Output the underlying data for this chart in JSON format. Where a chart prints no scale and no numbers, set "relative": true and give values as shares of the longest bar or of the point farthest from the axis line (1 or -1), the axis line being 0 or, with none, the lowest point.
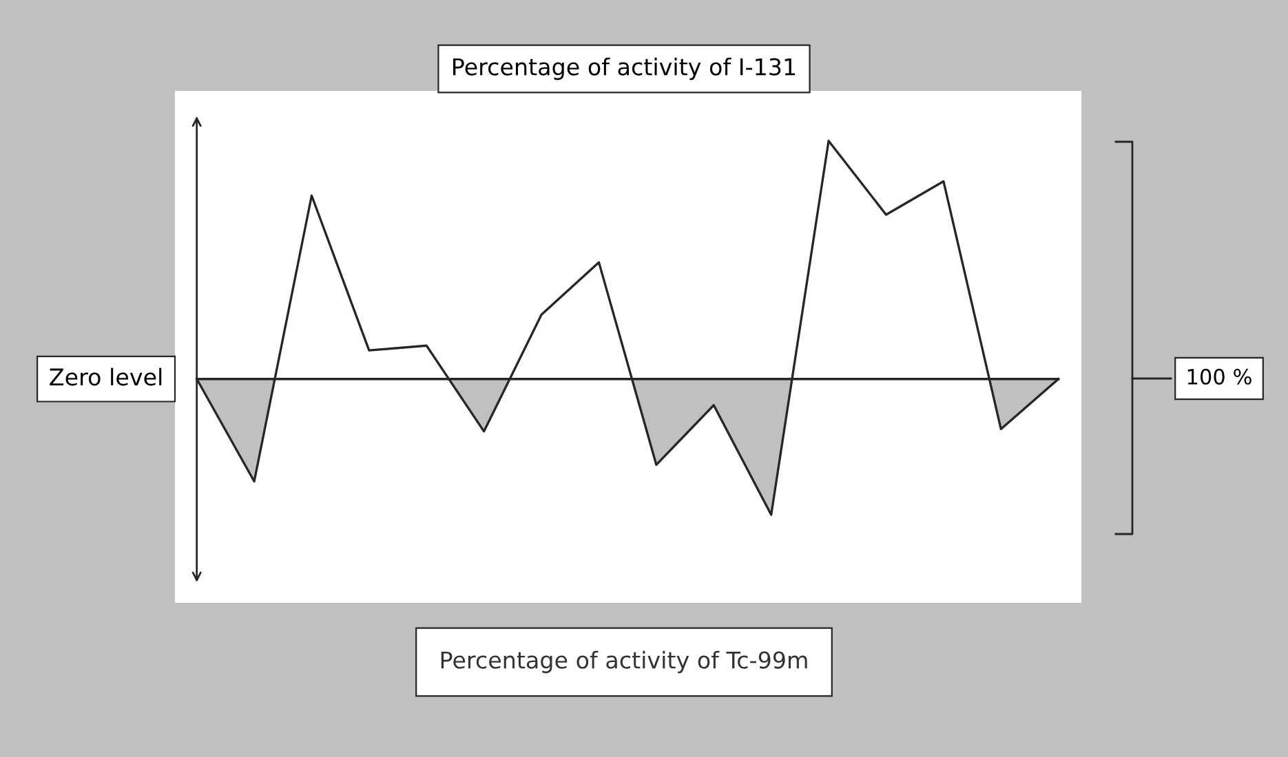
{
  "chart_data": {
    "type": "line",
    "title": "Percentage of activity of I-131",
    "categories": [
      null,
      null,
      null,
      null,
      null,
      null,
      null,
      null,
      null,
      null,
      null,
      null,
      null,
      null,
      null,
      null
    ],
    "relative": true,
    "series": [
      {
        "color": "#262626",
        "values": [
          0,
          -0.43,
          0.77,
          0.12,
          0.14,
          -0.22,
          0.27,
          0.49,
          -0.36,
          -0.11,
          -0.57,
          1,
          0.69,
          0.83,
          -0.21,
          0
        ]
      }
    ],
    "annotations": [
      "Zero level",
      "Percentage of activity of Tc-99m",
      "100 %"
    ],
    "grid": false,
    "legend": false,
    "marker": "none",
    "line_style": "solid"
  }
}
